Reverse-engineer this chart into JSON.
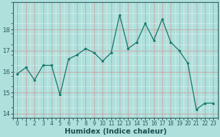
{
  "xlabel": "Humidex (Indice chaleur)",
  "x": [
    0,
    1,
    2,
    3,
    4,
    5,
    6,
    7,
    8,
    9,
    10,
    11,
    12,
    13,
    14,
    15,
    16,
    17,
    18,
    19,
    20,
    21,
    22,
    23
  ],
  "y": [
    15.9,
    16.2,
    15.6,
    16.3,
    16.3,
    14.9,
    16.6,
    16.8,
    17.1,
    16.9,
    16.5,
    16.9,
    18.7,
    17.1,
    17.4,
    18.3,
    17.5,
    18.5,
    17.4,
    17.0,
    16.4,
    14.2,
    14.5,
    14.5
  ],
  "line_color": "#1a7a6e",
  "marker_color": "#1a7a6e",
  "bg_color": "#b0e0dc",
  "major_grid_color": "#c8a8a8",
  "minor_grid_color": "#d8f0ee",
  "ylim": [
    13.8,
    19.3
  ],
  "yticks": [
    14,
    15,
    16,
    17,
    18
  ],
  "xticks": [
    0,
    1,
    2,
    3,
    4,
    5,
    6,
    7,
    8,
    9,
    10,
    11,
    12,
    13,
    14,
    15,
    16,
    17,
    18,
    19,
    20,
    21,
    22,
    23
  ],
  "tick_color": "#2a5a5a",
  "label_color": "#1a5050",
  "xlabel_fontsize": 7.5,
  "ytick_fontsize": 6.5,
  "xtick_fontsize": 5.5
}
